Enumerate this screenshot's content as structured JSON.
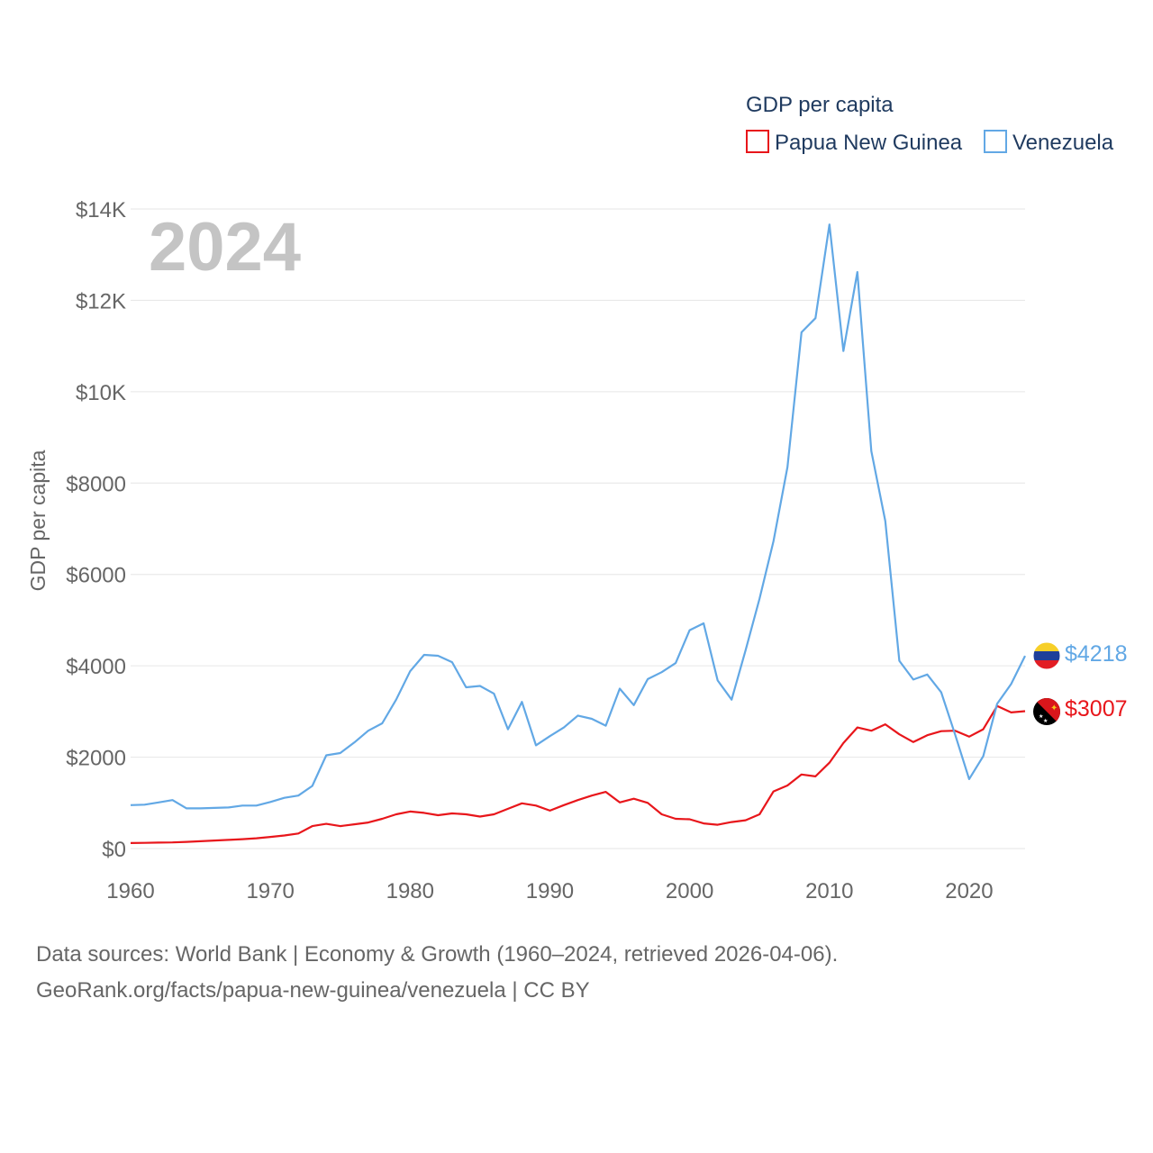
{
  "chart_data": {
    "type": "line",
    "title": "GDP per capita",
    "year_label": "2024",
    "ylabel": "GDP per capita",
    "xlabel": "",
    "xlim": [
      1960,
      2024
    ],
    "ylim": [
      0,
      14000
    ],
    "x_ticks": [
      1960,
      1970,
      1980,
      1990,
      2000,
      2010,
      2020
    ],
    "x_tick_labels": [
      "1960",
      "1970",
      "1980",
      "1990",
      "2000",
      "2010",
      "2020"
    ],
    "y_ticks": [
      0,
      2000,
      4000,
      6000,
      8000,
      10000,
      12000,
      14000
    ],
    "y_tick_labels": [
      "$0",
      "$2000",
      "$4000",
      "$6000",
      "$8000",
      "$10K",
      "$12K",
      "$14K"
    ],
    "legend": {
      "title": "GDP per capita",
      "position": "top-right"
    },
    "x": [
      1960,
      1961,
      1962,
      1963,
      1964,
      1965,
      1966,
      1967,
      1968,
      1969,
      1970,
      1971,
      1972,
      1973,
      1974,
      1975,
      1976,
      1977,
      1978,
      1979,
      1980,
      1981,
      1982,
      1983,
      1984,
      1985,
      1986,
      1987,
      1988,
      1989,
      1990,
      1991,
      1992,
      1993,
      1994,
      1995,
      1996,
      1997,
      1998,
      1999,
      2000,
      2001,
      2002,
      2003,
      2004,
      2005,
      2006,
      2007,
      2008,
      2009,
      2010,
      2011,
      2012,
      2013,
      2014,
      2015,
      2016,
      2017,
      2018,
      2019,
      2020,
      2021,
      2022,
      2023,
      2024
    ],
    "series": [
      {
        "name": "Papua New Guinea",
        "color": "#e8161b",
        "end_label": "$3007",
        "flag_icon": "papua-new-guinea-flag-icon",
        "values": [
          120,
          125,
          130,
          135,
          145,
          160,
          175,
          190,
          205,
          225,
          255,
          285,
          330,
          490,
          540,
          490,
          530,
          570,
          650,
          750,
          810,
          780,
          730,
          770,
          750,
          700,
          750,
          870,
          990,
          940,
          830,
          950,
          1060,
          1160,
          1240,
          1010,
          1090,
          1000,
          750,
          650,
          640,
          550,
          520,
          580,
          620,
          750,
          1250,
          1380,
          1620,
          1580,
          1880,
          2310,
          2650,
          2580,
          2720,
          2500,
          2330,
          2480,
          2570,
          2580,
          2450,
          2610,
          3120,
          2980,
          3007
        ]
      },
      {
        "name": "Venezuela",
        "color": "#62a8e5",
        "end_label": "$4218",
        "flag_icon": "venezuela-flag-icon",
        "values": [
          950,
          960,
          1010,
          1060,
          880,
          880,
          890,
          900,
          940,
          940,
          1020,
          1110,
          1160,
          1370,
          2040,
          2090,
          2320,
          2580,
          2740,
          3260,
          3880,
          4240,
          4220,
          4080,
          3530,
          3560,
          3390,
          2610,
          3210,
          2260,
          2460,
          2650,
          2910,
          2840,
          2690,
          3500,
          3140,
          3710,
          3860,
          4060,
          4780,
          4930,
          3680,
          3260,
          4340,
          5470,
          6730,
          8350,
          11300,
          11610,
          13660,
          10890,
          12620,
          8700,
          7170,
          4110,
          3700,
          3810,
          3420,
          2490,
          1520,
          2020,
          3170,
          3600,
          4218
        ]
      }
    ],
    "source_line1": "Data sources: World Bank | Economy & Growth (1960–2024, retrieved 2026-04-06).",
    "source_line2": "GeoRank.org/facts/papua-new-guinea/venezuela | CC BY"
  }
}
